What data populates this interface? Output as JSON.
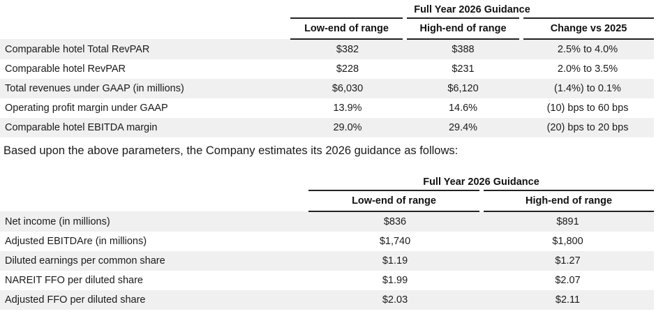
{
  "table1": {
    "group_header": "Full Year 2026 Guidance",
    "columns": [
      "Low-end of range",
      "High-end of range",
      "Change vs 2025"
    ],
    "rows": [
      {
        "label": "Comparable hotel Total RevPAR",
        "low": "$382",
        "high": "$388",
        "change": "2.5% to 4.0%"
      },
      {
        "label": "Comparable hotel RevPAR",
        "low": "$228",
        "high": "$231",
        "change": "2.0% to 3.5%"
      },
      {
        "label": "Total revenues under GAAP (in millions)",
        "low": "$6,030",
        "high": "$6,120",
        "change": "(1.4%) to 0.1%"
      },
      {
        "label": "Operating profit margin under GAAP",
        "low": "13.9%",
        "high": "14.6%",
        "change": "(10) bps to 60 bps"
      },
      {
        "label": "Comparable hotel EBITDA margin",
        "low": "29.0%",
        "high": "29.4%",
        "change": "(20) bps to 20 bps"
      }
    ]
  },
  "paragraph": "Based upon the above parameters, the Company estimates its 2026 guidance as follows:",
  "table2": {
    "group_header": "Full Year 2026 Guidance",
    "columns": [
      "Low-end of range",
      "High-end of range"
    ],
    "rows": [
      {
        "label": "Net income (in millions)",
        "low": "$836",
        "high": "$891"
      },
      {
        "label": "Adjusted EBITDAre (in millions)",
        "low": "$1,740",
        "high": "$1,800"
      },
      {
        "label": "Diluted earnings per common share",
        "low": "$1.19",
        "high": "$1.27"
      },
      {
        "label": "NAREIT FFO per diluted share",
        "low": "$1.99",
        "high": "$2.07"
      },
      {
        "label": "Adjusted FFO per diluted share",
        "low": "$2.03",
        "high": "$2.11"
      }
    ]
  }
}
